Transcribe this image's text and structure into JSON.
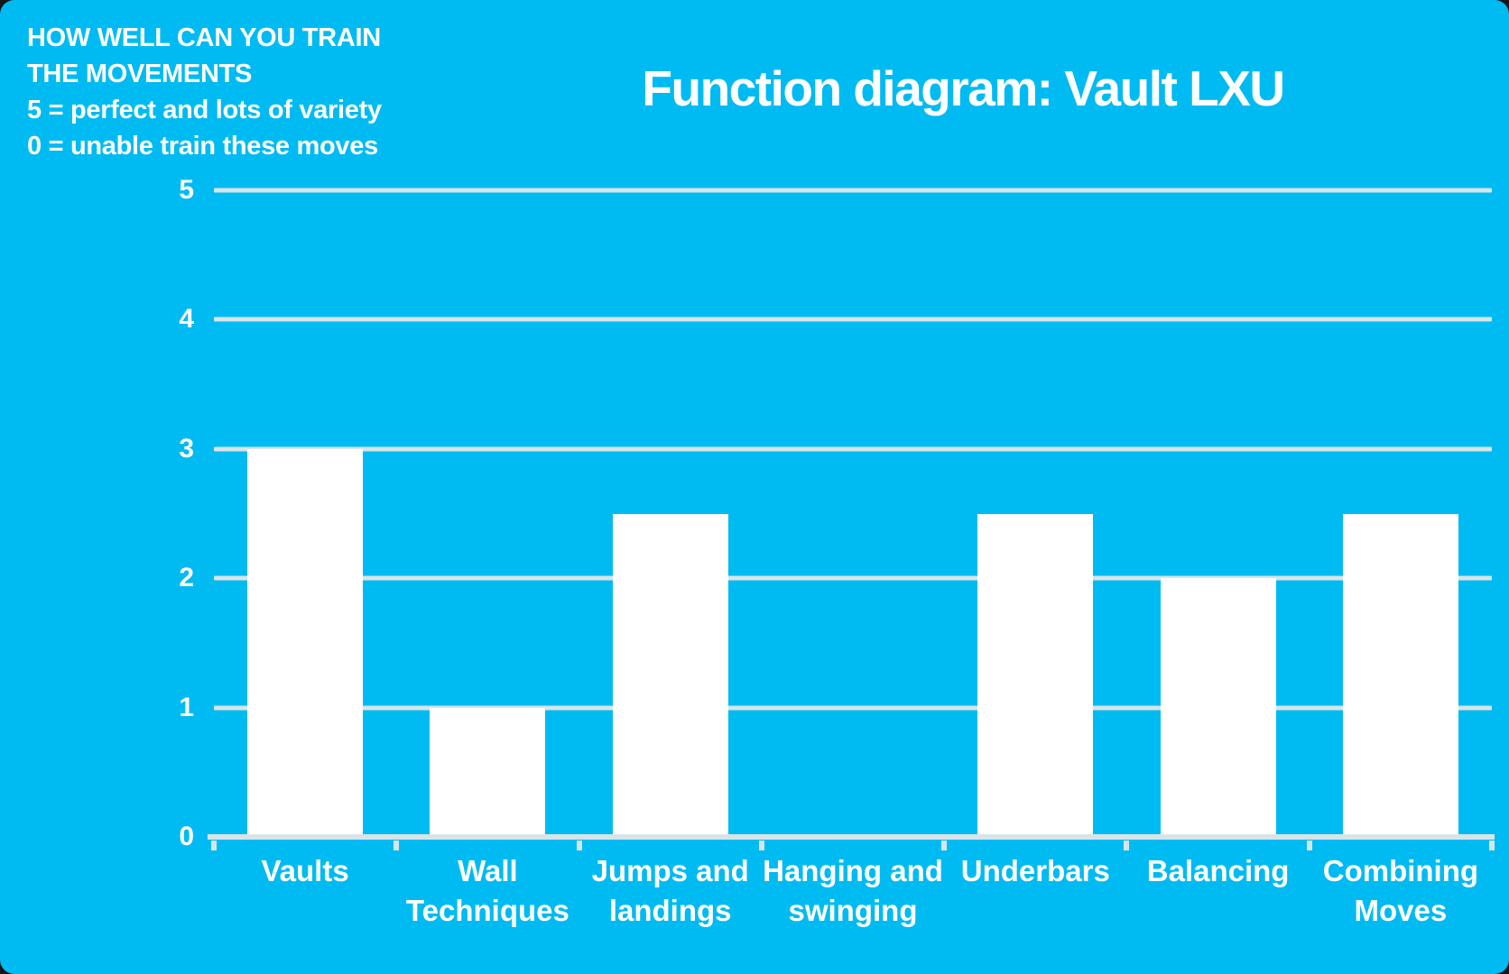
{
  "colors": {
    "background": "#00BBF2",
    "backdrop": "#14161A",
    "bar": "#FFFFFF",
    "gridline": "#D9E4E8",
    "axis": "#D9E4E8",
    "text": "#FFFFFF"
  },
  "annotation": {
    "lines": [
      "HOW WELL CAN YOU TRAIN",
      "THE MOVEMENTS",
      "5 = perfect and lots of variety",
      "0 = unable train these moves"
    ]
  },
  "chart_data": {
    "type": "bar",
    "title": "Function diagram: Vault LXU",
    "categories": [
      "Vaults",
      "Wall Techniques",
      "Jumps and landings",
      "Hanging and swinging",
      "Underbars",
      "Balancing",
      "Combining Moves"
    ],
    "values": [
      3,
      1,
      2.5,
      0,
      2.5,
      2,
      2.5
    ],
    "labels_display": [
      "Vaults",
      "Wall\nTechniques",
      "Jumps and\nlandings",
      "Hanging and\nswinging",
      "Underbars",
      "Balancing",
      "Combining\nMoves"
    ],
    "xlabel": "",
    "ylabel": "",
    "ylim": [
      0,
      5
    ],
    "yticks": [
      5,
      4,
      3,
      2,
      1,
      0
    ],
    "ytick_labels": [
      "5",
      "4",
      "3",
      "2",
      "1",
      "0"
    ],
    "grid": "horizontal gridlines at each integer, light gray on cyan",
    "legend": "none",
    "bar_color": "#FFFFFF",
    "background_color": "#00BBF2"
  }
}
